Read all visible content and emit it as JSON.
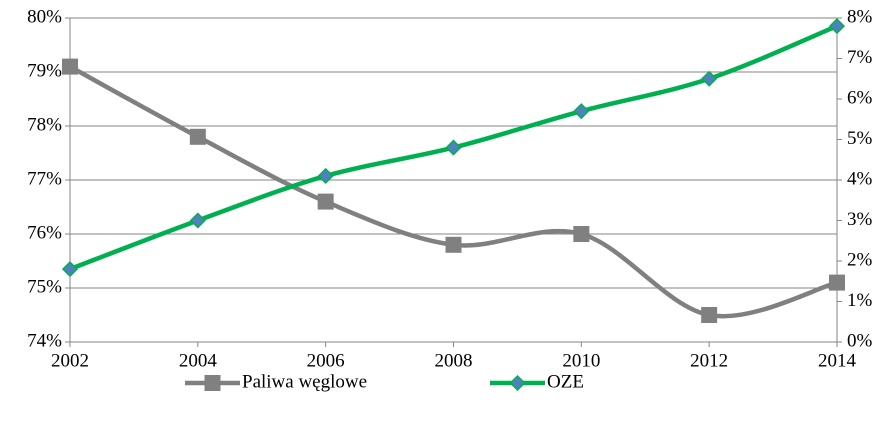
{
  "chart_data": {
    "type": "line",
    "categories": [
      "2002",
      "2004",
      "2006",
      "2008",
      "2010",
      "2012",
      "2014"
    ],
    "series": [
      {
        "name": "Paliwa węglowe",
        "color": "#808080",
        "marker": "square",
        "values": [
          79.1,
          77.8,
          76.6,
          75.8,
          76.0,
          74.5,
          75.1
        ]
      },
      {
        "name": "OZE",
        "color": "#00b050",
        "marker": "diamond",
        "marker_color": "#4f81bd",
        "axis": "y2",
        "values": [
          1.8,
          3.0,
          4.1,
          4.8,
          5.7,
          6.5,
          7.8
        ]
      }
    ],
    "ylim": [
      74,
      80
    ],
    "yticks": [
      {
        "value": 74,
        "label": "74%"
      },
      {
        "value": 75,
        "label": "75%"
      },
      {
        "value": 76,
        "label": "76%"
      },
      {
        "value": 77,
        "label": "77%"
      },
      {
        "value": 78,
        "label": "78%"
      },
      {
        "value": 79,
        "label": "79%"
      },
      {
        "value": 80,
        "label": "80%"
      }
    ],
    "y2lim": [
      0,
      8
    ],
    "y2ticks": [
      {
        "value": 0,
        "label": "0%"
      },
      {
        "value": 1,
        "label": "1%"
      },
      {
        "value": 2,
        "label": "2%"
      },
      {
        "value": 3,
        "label": "3%"
      },
      {
        "value": 4,
        "label": "4%"
      },
      {
        "value": 5,
        "label": "5%"
      },
      {
        "value": 6,
        "label": "6%"
      },
      {
        "value": 7,
        "label": "7%"
      },
      {
        "value": 8,
        "label": "8%"
      }
    ],
    "grid": true,
    "smooth": true,
    "legend": "bottom"
  }
}
